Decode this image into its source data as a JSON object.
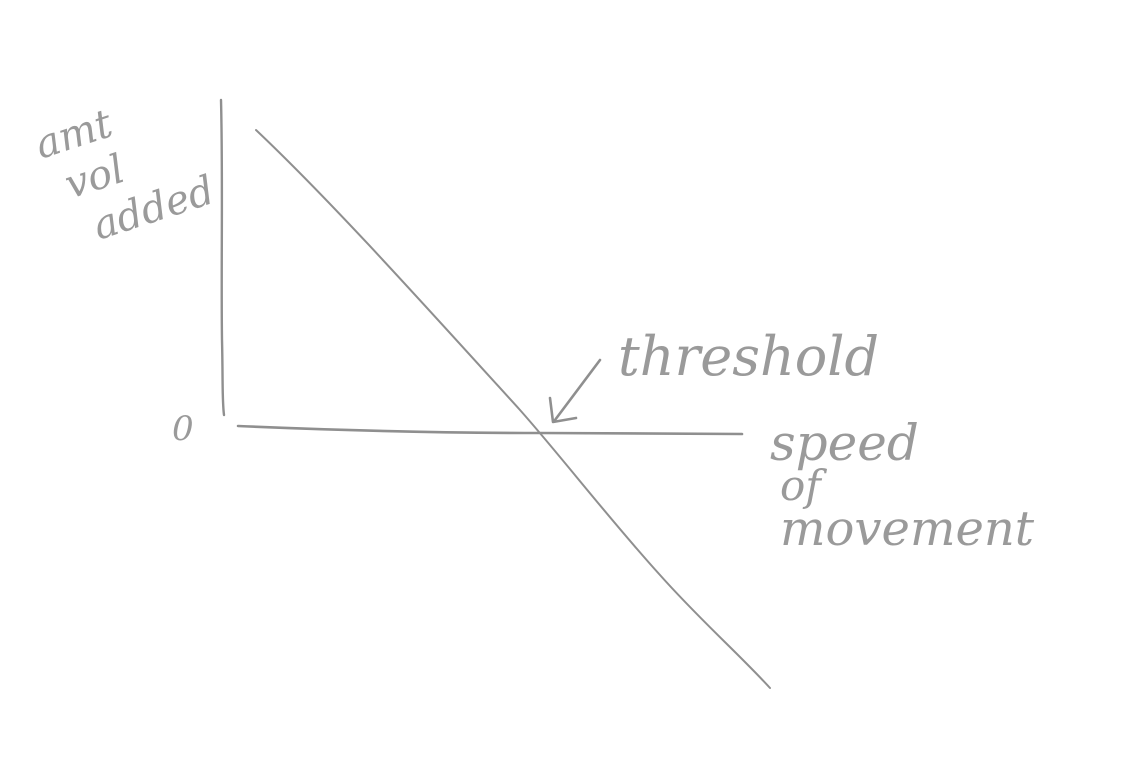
{
  "diagram": {
    "y_axis_label": [
      "amt",
      "vol",
      "added"
    ],
    "x_axis_label": [
      "speed",
      "of",
      "movement"
    ],
    "origin_label": "0",
    "annotation": "threshold"
  },
  "colors": {
    "paper": "#ffffff",
    "pencil": "#8f8f8f",
    "pencil_text": "#9a9a9a"
  }
}
